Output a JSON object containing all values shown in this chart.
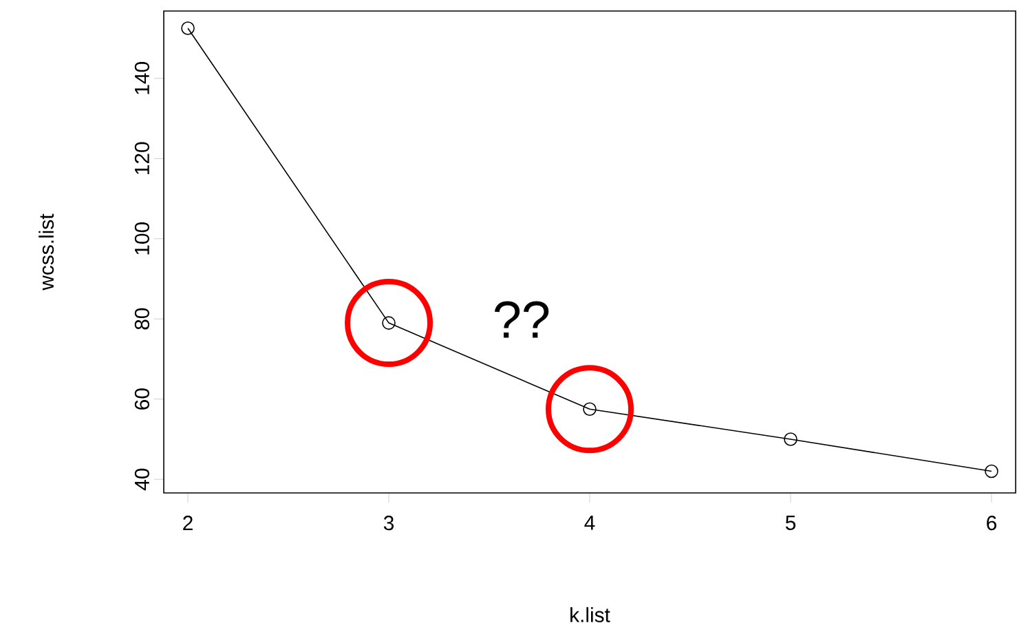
{
  "chart_data": {
    "type": "line",
    "xlabel": "k.list",
    "ylabel": "wcss.list",
    "x": [
      2,
      3,
      4,
      5,
      6
    ],
    "values": [
      152.5,
      79,
      57.5,
      50,
      42
    ],
    "color": "#000000",
    "marker": "circle",
    "line_style": "solid",
    "grid": false,
    "xlim": [
      1.88,
      6.12
    ],
    "ylim": [
      36.6,
      156.8
    ],
    "xticks": [
      2,
      3,
      4,
      5,
      6
    ],
    "yticks": [
      40,
      60,
      80,
      100,
      120,
      140
    ],
    "annotations": [
      "??"
    ]
  }
}
